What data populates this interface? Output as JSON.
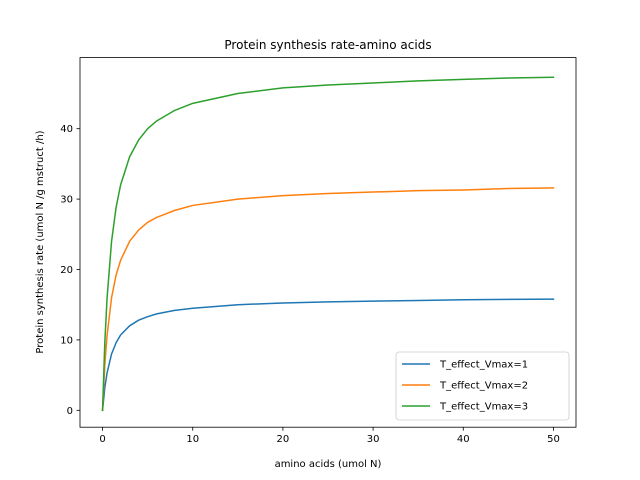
{
  "chart_data": {
    "type": "line",
    "title": "Protein synthesis rate-amino acids",
    "xlabel": "amino acids (umol N)",
    "ylabel": "Protein synthesis rate (umol N /g mstruct /h)",
    "xlim": [
      -2.5,
      52.5
    ],
    "ylim": [
      -2.4,
      50.1
    ],
    "xticks": [
      0,
      10,
      20,
      30,
      40,
      50
    ],
    "yticks": [
      0,
      10,
      20,
      30,
      40
    ],
    "grid": false,
    "legend_position": "lower-right",
    "x": [
      0,
      0.25,
      0.5,
      1,
      1.5,
      2,
      3,
      4,
      5,
      6,
      8,
      10,
      15,
      20,
      25,
      30,
      35,
      40,
      45,
      50
    ],
    "series": [
      {
        "name": "T_effect_Vmax=1",
        "color": "#1f77b4",
        "values": [
          0,
          3.2,
          5.3,
          8.0,
          9.6,
          10.7,
          12.0,
          12.8,
          13.3,
          13.7,
          14.2,
          14.5,
          15.0,
          15.25,
          15.4,
          15.5,
          15.6,
          15.7,
          15.75,
          15.8
        ]
      },
      {
        "name": "T_effect_Vmax=2",
        "color": "#ff7f0e",
        "values": [
          0,
          6.4,
          10.6,
          16.0,
          19.2,
          21.3,
          24.0,
          25.6,
          26.7,
          27.4,
          28.4,
          29.1,
          30.0,
          30.5,
          30.8,
          31.0,
          31.2,
          31.3,
          31.5,
          31.6
        ]
      },
      {
        "name": "T_effect_Vmax=3",
        "color": "#2ca02c",
        "values": [
          0,
          9.6,
          15.9,
          24.0,
          28.8,
          32.0,
          36.0,
          38.4,
          40.0,
          41.1,
          42.6,
          43.6,
          45.0,
          45.8,
          46.2,
          46.5,
          46.8,
          47.0,
          47.2,
          47.3
        ]
      }
    ]
  }
}
